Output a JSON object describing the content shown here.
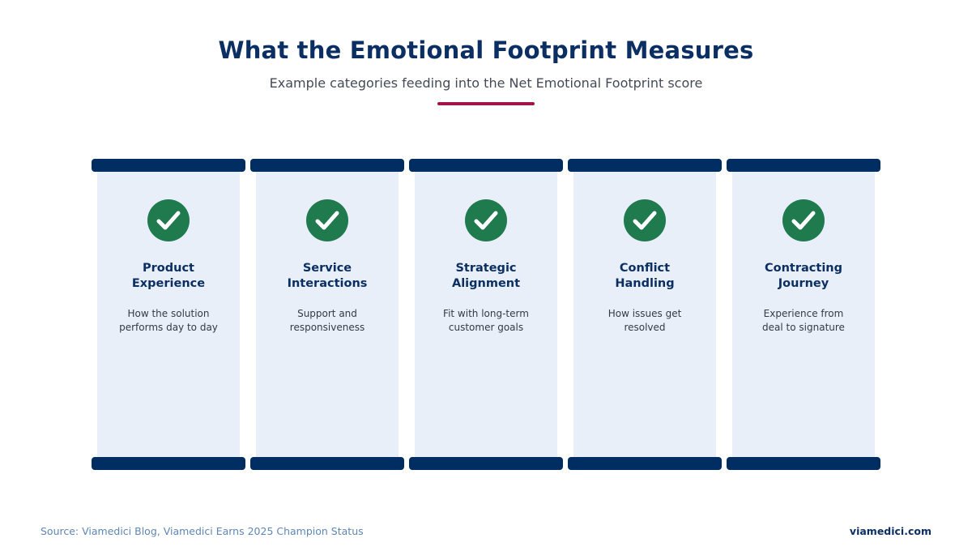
{
  "header": {
    "title": "What the Emotional Footprint Measures",
    "subtitle": "Example categories feeding into the Net Emotional Footprint score"
  },
  "columns": [
    {
      "title": "Product\nExperience",
      "description": "How the solution\nperforms day to day",
      "icon": "check-circle-icon"
    },
    {
      "title": "Service\nInteractions",
      "description": "Support and\nresponsiveness",
      "icon": "check-circle-icon"
    },
    {
      "title": "Strategic\nAlignment",
      "description": "Fit with long-term\ncustomer goals",
      "icon": "check-circle-icon"
    },
    {
      "title": "Conflict\nHandling",
      "description": "How issues get\nresolved",
      "icon": "check-circle-icon"
    },
    {
      "title": "Contracting\nJourney",
      "description": "Experience from\ndeal to signature",
      "icon": "check-circle-icon"
    }
  ],
  "footer": {
    "source": "Source: Viamedici Blog, Viamedici Earns 2025 Champion Status",
    "site": "viamedici.com"
  },
  "colors": {
    "navy": "#002e63",
    "accent": "#a3154a",
    "check_green": "#1f7a4d",
    "column_fill": "#e9eff8"
  }
}
